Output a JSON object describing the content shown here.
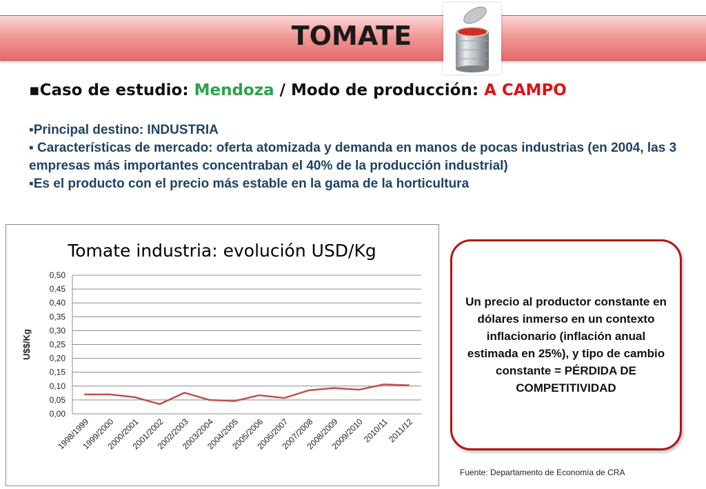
{
  "slide": {
    "title": "TOMATE",
    "line1": {
      "prefix": "▪Caso de estudio: ",
      "location": "Mendoza",
      "middle": "  / Modo de producción: ",
      "mode": "A CAMPO"
    },
    "bullets": [
      "▪Principal destino: INDUSTRIA",
      "▪ Características de mercado: oferta atomizada y demanda en manos de pocas industrias (en 2004, las 3 empresas más importantes concentraban el 40% de la producción industrial)",
      "▪Es el producto con el precio más estable en la gama de la horticultura"
    ],
    "note": "Un precio al productor constante en dólares inmerso en un contexto inflacionario (inflación anual estimada en 25%), y tipo de cambio constante = PÉRDIDA DE COMPETITIVIDAD",
    "source": "Fuente: Departamento de Economía de CRA",
    "colors": {
      "banner": "#f29a9a",
      "accent_green": "#2aa44a",
      "accent_red": "#e01010",
      "line": "#c0504d",
      "note_border": "#b01515"
    }
  },
  "chart_data": {
    "type": "line",
    "title": "Tomate industria: evolución USD/Kg",
    "xlabel": "",
    "ylabel": "U$$/Kg",
    "categories": [
      "1998/1999",
      "1999/2000",
      "2000/2001",
      "2001/2002",
      "2002/2003",
      "2003/2004",
      "2004/2005",
      "2005/2006",
      "2006/2007",
      "2007/2008",
      "2008/2009",
      "2009/2010",
      "2010/11",
      "2011/12"
    ],
    "values": [
      0.07,
      0.07,
      0.06,
      0.035,
      0.076,
      0.05,
      0.046,
      0.067,
      0.057,
      0.085,
      0.093,
      0.087,
      0.106,
      0.103
    ],
    "ylim": [
      0,
      0.5
    ],
    "yticks": [
      "0,00",
      "0,05",
      "0,10",
      "0,15",
      "0,20",
      "0,25",
      "0,30",
      "0,35",
      "0,40",
      "0,45",
      "0,50"
    ],
    "grid": true,
    "legend": "none"
  }
}
